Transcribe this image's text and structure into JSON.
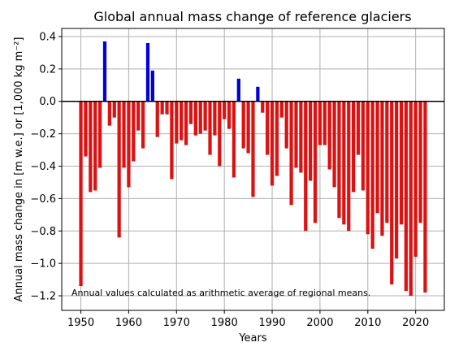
{
  "chart_data": {
    "type": "bar",
    "title": "Global annual mass change of reference glaciers",
    "xlabel": "Years",
    "ylabel": "Annual mass change in [m w.e.] or [1,000 kg m⁻²]",
    "annotation": "Annual values calculated as arithmetic average of regional means.",
    "xlim": [
      1946,
      2026
    ],
    "ylim": [
      -1.29,
      0.45
    ],
    "xticks": [
      1950,
      1960,
      1970,
      1980,
      1990,
      2000,
      2010,
      2020
    ],
    "yticks": [
      -1.2,
      -1.0,
      -0.8,
      -0.6,
      -0.4,
      -0.2,
      0.0,
      0.2,
      0.4
    ],
    "ytick_labels": [
      "−1.2",
      "−1.0",
      "−0.8",
      "−0.6",
      "−0.4",
      "−0.2",
      "0.0",
      "0.2",
      "0.4"
    ],
    "grid": true,
    "colors": {
      "positive": "#0000dd",
      "negative": "#dd1111",
      "zero_line": "#000000",
      "grid": "#b0b0b0"
    },
    "x": [
      1950,
      1951,
      1952,
      1953,
      1954,
      1955,
      1956,
      1957,
      1958,
      1959,
      1960,
      1961,
      1962,
      1963,
      1964,
      1965,
      1966,
      1967,
      1968,
      1969,
      1970,
      1971,
      1972,
      1973,
      1974,
      1975,
      1976,
      1977,
      1978,
      1979,
      1980,
      1981,
      1982,
      1983,
      1984,
      1985,
      1986,
      1987,
      1988,
      1989,
      1990,
      1991,
      1992,
      1993,
      1994,
      1995,
      1996,
      1997,
      1998,
      1999,
      2000,
      2001,
      2002,
      2003,
      2004,
      2005,
      2006,
      2007,
      2008,
      2009,
      2010,
      2011,
      2012,
      2013,
      2014,
      2015,
      2016,
      2017,
      2018,
      2019,
      2020,
      2021,
      2022
    ],
    "values": [
      -1.14,
      -0.34,
      -0.56,
      -0.55,
      -0.41,
      0.37,
      -0.15,
      -0.1,
      -0.84,
      -0.41,
      -0.53,
      -0.37,
      -0.18,
      -0.29,
      0.36,
      0.19,
      -0.22,
      -0.08,
      -0.08,
      -0.48,
      -0.26,
      -0.24,
      -0.27,
      -0.14,
      -0.21,
      -0.2,
      -0.18,
      -0.33,
      -0.21,
      -0.4,
      -0.11,
      -0.17,
      -0.47,
      0.14,
      -0.29,
      -0.32,
      -0.59,
      0.09,
      -0.07,
      -0.33,
      -0.52,
      -0.46,
      -0.1,
      -0.29,
      -0.64,
      -0.41,
      -0.44,
      -0.8,
      -0.49,
      -0.75,
      -0.27,
      -0.27,
      -0.42,
      -0.53,
      -0.72,
      -0.76,
      -0.8,
      -0.56,
      -0.33,
      -0.55,
      -0.82,
      -0.91,
      -0.69,
      -0.83,
      -0.75,
      -1.13,
      -0.97,
      -0.76,
      -1.17,
      -1.2,
      -0.96,
      -0.75,
      -1.18
    ]
  }
}
